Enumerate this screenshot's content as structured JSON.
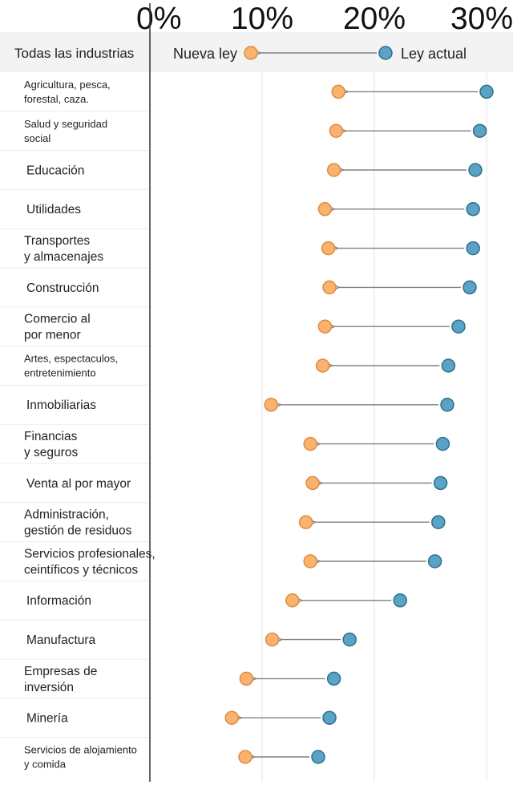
{
  "chart_data": {
    "type": "dumbbell",
    "xlim": [
      0,
      30
    ],
    "x_ticks": [
      "0%",
      "10%",
      "20%",
      "30%"
    ],
    "x_tick_values": [
      0,
      10,
      20,
      30
    ],
    "colors": {
      "old": "#5aa3c6",
      "new": "#f9b36f",
      "arrow": "#808080",
      "axis": "#333333",
      "grid": "#e6e6e6",
      "header_bg": "#f3f3f3"
    },
    "legend": {
      "new_label": "Nueva ley",
      "old_label": "Ley actual"
    },
    "header": {
      "label": "Todas las industrias",
      "old": 21.0,
      "new": 9.0
    },
    "categories": [
      {
        "lines": [
          "Agricultura, pesca,",
          "forestal, caza."
        ],
        "small": true,
        "old": 30.0,
        "new": 16.8
      },
      {
        "lines": [
          "Salud y seguridad",
          "social"
        ],
        "small": true,
        "old": 29.4,
        "new": 16.6
      },
      {
        "lines": [
          "Educación"
        ],
        "small": false,
        "old": 29.0,
        "new": 16.4
      },
      {
        "lines": [
          "Utilidades"
        ],
        "small": false,
        "old": 28.8,
        "new": 15.6
      },
      {
        "lines": [
          "Transportes",
          "y almacenajes"
        ],
        "small": false,
        "old": 28.8,
        "new": 15.9
      },
      {
        "lines": [
          "Construcción"
        ],
        "small": false,
        "old": 28.5,
        "new": 16.0
      },
      {
        "lines": [
          "Comercio al",
          "por menor"
        ],
        "small": false,
        "old": 27.5,
        "new": 15.6
      },
      {
        "lines": [
          "Artes, espectaculos,",
          "entretenimiento"
        ],
        "small": true,
        "old": 26.6,
        "new": 15.4
      },
      {
        "lines": [
          "Inmobiliarias"
        ],
        "small": false,
        "old": 26.5,
        "new": 10.8
      },
      {
        "lines": [
          "Financias",
          "y seguros"
        ],
        "small": false,
        "old": 26.1,
        "new": 14.3
      },
      {
        "lines": [
          "Venta al por mayor"
        ],
        "small": false,
        "old": 25.9,
        "new": 14.5
      },
      {
        "lines": [
          "Administración,",
          "gestión de residuos"
        ],
        "small": false,
        "old": 25.7,
        "new": 13.9
      },
      {
        "lines": [
          "Servicios profesionales,",
          "ceintíficos y técnicos"
        ],
        "small": false,
        "old": 25.4,
        "new": 14.3
      },
      {
        "lines": [
          "Información"
        ],
        "small": false,
        "old": 22.3,
        "new": 12.7
      },
      {
        "lines": [
          "Manufactura"
        ],
        "small": false,
        "old": 17.8,
        "new": 10.9
      },
      {
        "lines": [
          "Empresas de",
          "inversión"
        ],
        "small": false,
        "old": 16.4,
        "new": 8.6
      },
      {
        "lines": [
          "Minería"
        ],
        "small": false,
        "old": 16.0,
        "new": 7.3
      },
      {
        "lines": [
          "Servicios de alojamiento",
          "y comida"
        ],
        "small": true,
        "old": 15.0,
        "new": 8.5
      }
    ]
  }
}
